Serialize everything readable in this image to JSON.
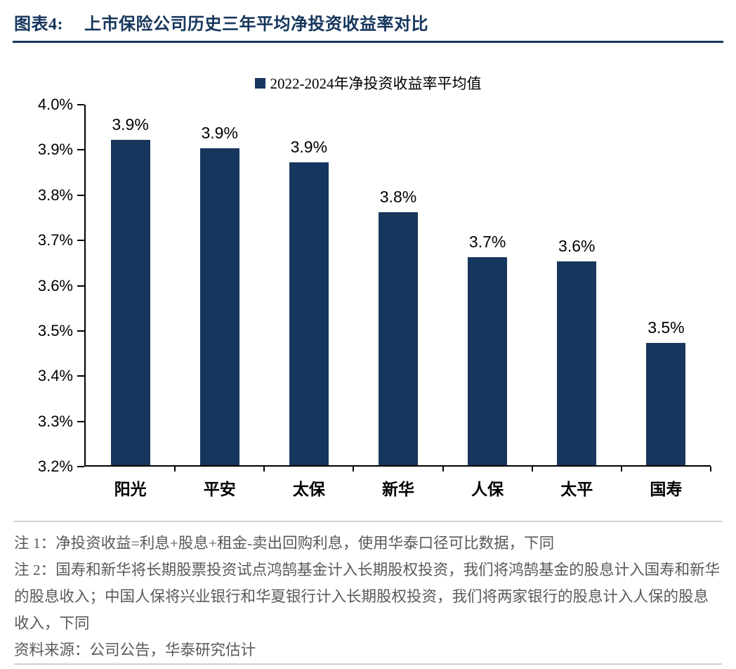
{
  "header": {
    "label": "图表4:",
    "title": "上市保险公司历史三年平均净投资收益率对比"
  },
  "chart_data": {
    "type": "bar",
    "title": "上市保险公司历史三年平均净投资收益率对比",
    "legend": "2022-2024年净投资收益率平均值",
    "legend_position": "top",
    "categories": [
      "阳光",
      "平安",
      "太保",
      "新华",
      "人保",
      "太平",
      "国寿"
    ],
    "values": [
      3.92,
      3.9,
      3.87,
      3.76,
      3.66,
      3.65,
      3.47
    ],
    "labels": [
      "3.9%",
      "3.9%",
      "3.9%",
      "3.8%",
      "3.7%",
      "3.6%",
      "3.5%"
    ],
    "ylim": [
      3.2,
      4.0
    ],
    "ytick_step": 0.1,
    "yticks": [
      "4.0%",
      "3.9%",
      "3.8%",
      "3.7%",
      "3.6%",
      "3.5%",
      "3.4%",
      "3.3%",
      "3.2%"
    ],
    "xlabel": "",
    "ylabel": "",
    "grid": false,
    "bar_color": "#17365D"
  },
  "notes": {
    "note1": "注 1：净投资收益=利息+股息+租金-卖出回购利息，使用华泰口径可比数据，下同",
    "note2": "注 2：国寿和新华将长期股票投资试点鸿鹄基金计入长期股权投资，我们将鸿鹄基金的股息计入国寿和新华的股息收入；中国人保将兴业银行和华夏银行计入长期股权投资，我们将两家银行的股息计入人保的股息收入，下同",
    "source": "资料来源：公司公告，华泰研究估计"
  },
  "colors": {
    "accent": "#17365D",
    "title_text": "#16365C",
    "note_text": "#595959",
    "divider": "#cfcfcf",
    "axis": "#000000"
  }
}
